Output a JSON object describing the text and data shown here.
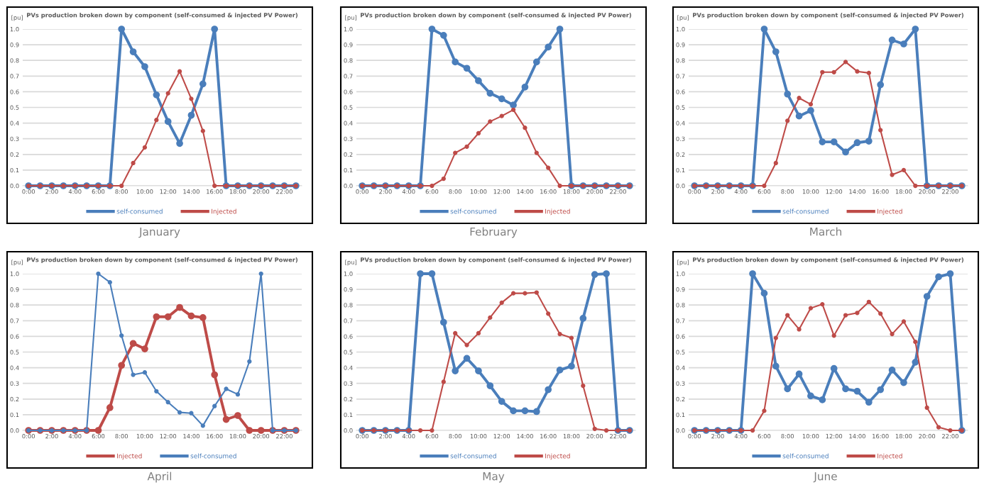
{
  "chart_data": [
    {
      "type": "line",
      "title": "PVs production broken down by component (self-consumed & injected PV Power)",
      "ylabel": "[pu]",
      "annotations": [
        "January"
      ],
      "categories": [
        "0:00",
        null,
        "2:00",
        null,
        "4:00",
        null,
        "6:00",
        null,
        "8:00",
        null,
        "10:00",
        null,
        "12:00",
        null,
        "14:00",
        null,
        "16:00",
        null,
        "18:00",
        null,
        "20:00",
        null,
        "22:00",
        null
      ],
      "ylim": [
        0,
        1
      ],
      "yticks": [
        {
          "value": 0,
          "label": "0.0"
        },
        {
          "value": 0.1,
          "label": "0.1"
        },
        {
          "value": 0.2,
          "label": "0.2"
        },
        {
          "value": 0.3,
          "label": "0.3"
        },
        {
          "value": 0.4,
          "label": "0.4"
        },
        {
          "value": 0.5,
          "label": "0.5"
        },
        {
          "value": 0.6,
          "label": "0.6"
        },
        {
          "value": 0.7,
          "label": "0.7"
        },
        {
          "value": 0.8,
          "label": "0.8"
        },
        {
          "value": 0.9,
          "label": "0.9"
        },
        {
          "value": 1,
          "label": "1.0"
        }
      ],
      "grid": "y",
      "legend": "bottom",
      "marker": "circle",
      "series": [
        {
          "name": "self-consumed",
          "color": "#4a7ebb",
          "values": [
            0,
            0,
            0,
            0,
            0,
            0,
            0,
            0,
            1.0,
            0.855,
            0.76,
            0.58,
            0.41,
            0.27,
            0.45,
            0.65,
            1.0,
            0,
            0,
            0,
            0,
            0,
            0,
            0
          ]
        },
        {
          "name": "Injected",
          "color": "#be4b48",
          "values": [
            0,
            0,
            0,
            0,
            0,
            0,
            0,
            0,
            0,
            0.145,
            0.245,
            0.42,
            0.59,
            0.73,
            0.555,
            0.35,
            0,
            0,
            0,
            0,
            0,
            0,
            0,
            0
          ]
        }
      ]
    },
    {
      "type": "line",
      "title": "PVs production broken down by component (self-consumed & injected PV Power)",
      "ylabel": "[pu]",
      "annotations": [
        "February"
      ],
      "categories": [
        "0:00",
        null,
        "2:00",
        null,
        "4:00",
        null,
        "6:00",
        null,
        "8:00",
        null,
        "10:00",
        null,
        "12:00",
        null,
        "14:00",
        null,
        "16:00",
        null,
        "18:00",
        null,
        "20:00",
        null,
        "22:00",
        null
      ],
      "ylim": [
        0,
        1
      ],
      "yticks": [
        {
          "value": 0,
          "label": "0.0"
        },
        {
          "value": 0.1,
          "label": "0.1"
        },
        {
          "value": 0.2,
          "label": "0.2"
        },
        {
          "value": 0.3,
          "label": "0.3"
        },
        {
          "value": 0.4,
          "label": "0.4"
        },
        {
          "value": 0.5,
          "label": "0.5"
        },
        {
          "value": 0.6,
          "label": "0.6"
        },
        {
          "value": 0.7,
          "label": "0.7"
        },
        {
          "value": 0.8,
          "label": "0.8"
        },
        {
          "value": 0.9,
          "label": "0.9"
        },
        {
          "value": 1,
          "label": "1.0"
        }
      ],
      "grid": "y",
      "legend": "bottom",
      "marker": "circle",
      "series": [
        {
          "name": "self-consumed",
          "color": "#4a7ebb",
          "values": [
            0,
            0,
            0,
            0,
            0,
            0,
            1.0,
            0.96,
            0.79,
            0.75,
            0.67,
            0.59,
            0.555,
            0.515,
            0.63,
            0.79,
            0.885,
            1.0,
            0,
            0,
            0,
            0,
            0,
            0
          ]
        },
        {
          "name": "Injected",
          "color": "#be4b48",
          "values": [
            0,
            0,
            0,
            0,
            0,
            0,
            0,
            0.045,
            0.21,
            0.25,
            0.335,
            0.41,
            0.445,
            0.485,
            0.37,
            0.21,
            0.115,
            0,
            0,
            0,
            0,
            0,
            0,
            0
          ]
        }
      ]
    },
    {
      "type": "line",
      "title": "PVs production broken down by component (self-consumed & injected PV Power)",
      "ylabel": "[pu]",
      "annotations": [
        "March"
      ],
      "categories": [
        "0:00",
        null,
        "2:00",
        null,
        "4:00",
        null,
        "6:00",
        null,
        "8:00",
        null,
        "10:00",
        null,
        "12:00",
        null,
        "14:00",
        null,
        "16:00",
        null,
        "18:00",
        null,
        "20:00",
        null,
        "22:00",
        null
      ],
      "ylim": [
        0,
        1
      ],
      "yticks": [
        {
          "value": 0,
          "label": "0.0"
        },
        {
          "value": 0.1,
          "label": "0.1"
        },
        {
          "value": 0.2,
          "label": "0.2"
        },
        {
          "value": 0.3,
          "label": "0.3"
        },
        {
          "value": 0.4,
          "label": "0.4"
        },
        {
          "value": 0.5,
          "label": "0.5"
        },
        {
          "value": 0.6,
          "label": "0.6"
        },
        {
          "value": 0.7,
          "label": "0.7"
        },
        {
          "value": 0.8,
          "label": "0.8"
        },
        {
          "value": 0.9,
          "label": "0.9"
        },
        {
          "value": 1,
          "label": "1.0"
        }
      ],
      "grid": "y",
      "legend": "bottom",
      "marker": "circle",
      "series": [
        {
          "name": "self-consumed",
          "color": "#4a7ebb",
          "values": [
            0,
            0,
            0,
            0,
            0,
            0,
            1.0,
            0.855,
            0.585,
            0.445,
            0.48,
            0.28,
            0.28,
            0.215,
            0.275,
            0.285,
            0.645,
            0.93,
            0.905,
            1.0,
            0,
            0,
            0,
            0
          ]
        },
        {
          "name": "Injected",
          "color": "#be4b48",
          "values": [
            0,
            0,
            0,
            0,
            0,
            0,
            0,
            0.145,
            0.415,
            0.56,
            0.52,
            0.725,
            0.725,
            0.79,
            0.73,
            0.72,
            0.355,
            0.07,
            0.1,
            0,
            0,
            0,
            0,
            0
          ]
        }
      ]
    },
    {
      "type": "line",
      "title": "PVs production broken down by component (self-consumed & injected PV Power)",
      "ylabel": "[pu]",
      "annotations": [
        "April"
      ],
      "categories": [
        "0:00",
        null,
        "2:00",
        null,
        "4:00",
        null,
        "6:00",
        null,
        "8:00",
        null,
        "10:00",
        null,
        "12:00",
        null,
        "14:00",
        null,
        "16:00",
        null,
        "18:00",
        null,
        "20:00",
        null,
        "22:00",
        null
      ],
      "ylim": [
        0,
        1
      ],
      "yticks": [
        {
          "value": 0,
          "label": "0.0"
        },
        {
          "value": 0.1,
          "label": "0.1"
        },
        {
          "value": 0.2,
          "label": "0.2"
        },
        {
          "value": 0.3,
          "label": "0.3"
        },
        {
          "value": 0.4,
          "label": "0.4"
        },
        {
          "value": 0.5,
          "label": "0.5"
        },
        {
          "value": 0.6,
          "label": "0.6"
        },
        {
          "value": 0.7,
          "label": "0.7"
        },
        {
          "value": 0.8,
          "label": "0.8"
        },
        {
          "value": 0.9,
          "label": "0.9"
        },
        {
          "value": 1,
          "label": "1.0"
        }
      ],
      "grid": "y",
      "legend": "bottom",
      "marker": "circle",
      "series": [
        {
          "name": "Injected",
          "color": "#be4b48",
          "values": [
            0,
            0,
            0,
            0,
            0,
            0,
            0,
            0.145,
            0.415,
            0.555,
            0.52,
            0.725,
            0.725,
            0.785,
            0.73,
            0.72,
            0.355,
            0.07,
            0.095,
            0,
            0,
            0,
            0,
            0
          ]
        },
        {
          "name": "self-consumed",
          "color": "#4a7ebb",
          "values": [
            0,
            0,
            0,
            0,
            0,
            0,
            1.0,
            0.945,
            0.605,
            0.355,
            0.37,
            0.25,
            0.18,
            0.115,
            0.11,
            0.03,
            0.155,
            0.265,
            0.23,
            0.44,
            1.0,
            0,
            0,
            0
          ]
        }
      ]
    },
    {
      "type": "line",
      "title": "PVs production broken down by component (self-consumed & injected PV Power)",
      "ylabel": "[pu]",
      "annotations": [
        "May"
      ],
      "categories": [
        "0:00",
        null,
        "2:00",
        null,
        "4:00",
        null,
        "6:00",
        null,
        "8:00",
        null,
        "10:00",
        null,
        "12:00",
        null,
        "14:00",
        null,
        "16:00",
        null,
        "18:00",
        null,
        "20:00",
        null,
        "22:00",
        null
      ],
      "ylim": [
        0,
        1
      ],
      "yticks": [
        {
          "value": 0,
          "label": "0.0"
        },
        {
          "value": 0.1,
          "label": "0.1"
        },
        {
          "value": 0.2,
          "label": "0.2"
        },
        {
          "value": 0.3,
          "label": "0.3"
        },
        {
          "value": 0.4,
          "label": "0.4"
        },
        {
          "value": 0.5,
          "label": "0.5"
        },
        {
          "value": 0.6,
          "label": "0.6"
        },
        {
          "value": 0.7,
          "label": "0.7"
        },
        {
          "value": 0.8,
          "label": "0.8"
        },
        {
          "value": 0.9,
          "label": "0.9"
        },
        {
          "value": 1,
          "label": "1.0"
        }
      ],
      "grid": "y",
      "legend": "bottom",
      "marker": "circle",
      "series": [
        {
          "name": "self-consumed",
          "color": "#4a7ebb",
          "values": [
            0,
            0,
            0,
            0,
            0,
            1.0,
            1.0,
            0.69,
            0.38,
            0.46,
            0.38,
            0.285,
            0.185,
            0.125,
            0.125,
            0.12,
            0.26,
            0.385,
            0.41,
            0.715,
            0.995,
            1.0,
            0,
            0
          ]
        },
        {
          "name": "Injected",
          "color": "#be4b48",
          "values": [
            0,
            0,
            0,
            0,
            0,
            0,
            0,
            0.31,
            0.62,
            0.545,
            0.62,
            0.72,
            0.815,
            0.875,
            0.875,
            0.88,
            0.745,
            0.615,
            0.59,
            0.285,
            0.01,
            0,
            0,
            0
          ]
        }
      ]
    },
    {
      "type": "line",
      "title": "PVs production broken down by component (self-consumed & injected PV Power)",
      "ylabel": "[pu]",
      "annotations": [
        "June"
      ],
      "categories": [
        "0:00",
        null,
        "2:00",
        null,
        "4:00",
        null,
        "6:00",
        null,
        "8:00",
        null,
        "10:00",
        null,
        "12:00",
        null,
        "14:00",
        null,
        "16:00",
        null,
        "18:00",
        null,
        "20:00",
        null,
        "22:00",
        null
      ],
      "ylim": [
        0,
        1
      ],
      "yticks": [
        {
          "value": 0,
          "label": "0.0"
        },
        {
          "value": 0.1,
          "label": "0.1"
        },
        {
          "value": 0.2,
          "label": "0.2"
        },
        {
          "value": 0.3,
          "label": "0.3"
        },
        {
          "value": 0.4,
          "label": "0.4"
        },
        {
          "value": 0.5,
          "label": "0.5"
        },
        {
          "value": 0.6,
          "label": "0.6"
        },
        {
          "value": 0.7,
          "label": "0.7"
        },
        {
          "value": 0.8,
          "label": "0.8"
        },
        {
          "value": 0.9,
          "label": "0.9"
        },
        {
          "value": 1,
          "label": "1.0"
        }
      ],
      "grid": "y",
      "legend": "bottom",
      "marker": "circle",
      "series": [
        {
          "name": "self-consumed",
          "color": "#4a7ebb",
          "values": [
            0,
            0,
            0,
            0,
            0,
            1.0,
            0.875,
            0.41,
            0.265,
            0.36,
            0.22,
            0.195,
            0.395,
            0.265,
            0.25,
            0.18,
            0.26,
            0.385,
            0.305,
            0.435,
            0.855,
            0.98,
            1.0,
            0
          ]
        },
        {
          "name": "Injected",
          "color": "#be4b48",
          "values": [
            0,
            0,
            0,
            0,
            0,
            0,
            0.125,
            0.59,
            0.735,
            0.645,
            0.78,
            0.805,
            0.605,
            0.735,
            0.75,
            0.82,
            0.745,
            0.615,
            0.695,
            0.565,
            0.145,
            0.02,
            0,
            0
          ]
        }
      ]
    }
  ]
}
